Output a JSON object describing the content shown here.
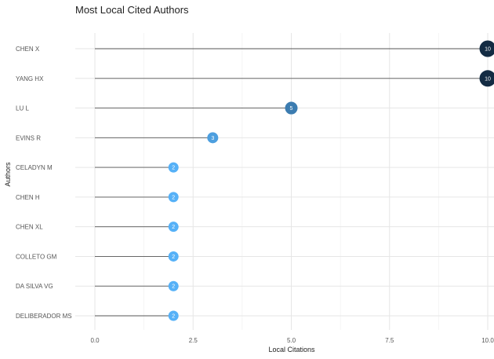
{
  "chart_data": {
    "type": "lollipop",
    "title": "Most Local Cited Authors",
    "xlabel": "Local Citations",
    "ylabel": "Authors",
    "xlim": [
      0,
      10
    ],
    "x_ticks": [
      "0.0",
      "2.5",
      "5.0",
      "7.5",
      "10.0"
    ],
    "grid": true,
    "categories": [
      "CHEN X",
      "YANG HX",
      "LU L",
      "EVINS R",
      "CELADYN M",
      "CHEN H",
      "CHEN XL",
      "COLLETO GM",
      "DA SILVA VG",
      "DELIBERADOR MS"
    ],
    "values": [
      10,
      10,
      5,
      3,
      2,
      2,
      2,
      2,
      2,
      2
    ],
    "data_labels": [
      "10",
      "10",
      "5",
      "3",
      "2",
      "2",
      "2",
      "2",
      "2",
      "2"
    ],
    "colors": {
      "low": "#56b1f7",
      "mid": "#336a98",
      "high": "#132b43",
      "stem": "#555555",
      "grid_major": "#e6e6e6",
      "grid_minor": "#f2f2f2"
    }
  }
}
